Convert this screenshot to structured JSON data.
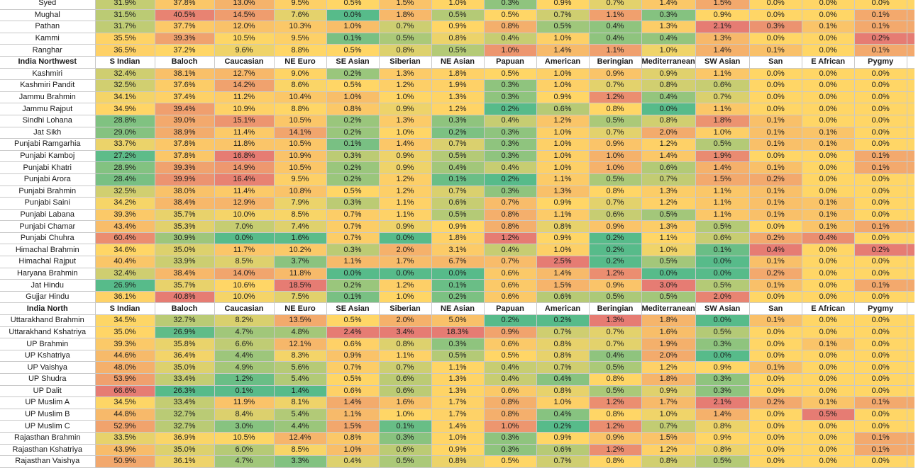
{
  "columns": [
    "S Indian",
    "Baloch",
    "Caucasian",
    "NE Euro",
    "SE Asian",
    "Siberian",
    "NE Asian",
    "Papuan",
    "American",
    "Beringian",
    "Mediterranean",
    "SW Asian",
    "San",
    "E African",
    "Pygmy"
  ],
  "rows": [
    {
      "name": "Syed",
      "v": [
        "31.9%",
        "37.8%",
        "13.0%",
        "9.5%",
        "0.5%",
        "1.5%",
        "1.0%",
        "0.3%",
        "0.9%",
        "0.7%",
        "1.4%",
        "1.5%",
        "0.0%",
        "0.0%",
        "0.0%"
      ]
    },
    {
      "name": "Mughal",
      "v": [
        "31.5%",
        "40.5%",
        "14.5%",
        "7.6%",
        "0.0%",
        "1.8%",
        "0.5%",
        "0.5%",
        "0.7%",
        "1.1%",
        "0.3%",
        "0.9%",
        "0.0%",
        "0.0%",
        "0.1%"
      ]
    },
    {
      "name": "Pathan",
      "v": [
        "31.7%",
        "37.7%",
        "12.0%",
        "10.3%",
        "1.0%",
        "0.7%",
        "0.9%",
        "0.8%",
        "0.5%",
        "0.4%",
        "1.3%",
        "2.1%",
        "0.3%",
        "0.1%",
        "0.1%"
      ]
    },
    {
      "name": "Kammi",
      "v": [
        "35.5%",
        "39.3%",
        "10.5%",
        "9.5%",
        "0.1%",
        "0.5%",
        "0.8%",
        "0.4%",
        "1.0%",
        "0.4%",
        "0.4%",
        "1.3%",
        "0.0%",
        "0.0%",
        "0.2%"
      ]
    },
    {
      "name": "Ranghar",
      "v": [
        "36.5%",
        "37.2%",
        "9.6%",
        "8.8%",
        "0.5%",
        "0.8%",
        "0.5%",
        "1.0%",
        "1.4%",
        "1.1%",
        "1.0%",
        "1.4%",
        "0.1%",
        "0.0%",
        "0.1%"
      ]
    },
    {
      "name": "India Northwest",
      "header": true
    },
    {
      "name": "Kashmiri",
      "v": [
        "32.4%",
        "38.1%",
        "12.7%",
        "9.0%",
        "0.2%",
        "1.3%",
        "1.8%",
        "0.5%",
        "1.0%",
        "0.9%",
        "0.9%",
        "1.1%",
        "0.0%",
        "0.0%",
        "0.0%"
      ]
    },
    {
      "name": "Kashmiri Pandit",
      "v": [
        "32.5%",
        "37.6%",
        "14.2%",
        "8.6%",
        "0.5%",
        "1.2%",
        "1.9%",
        "0.3%",
        "1.0%",
        "0.7%",
        "0.8%",
        "0.6%",
        "0.0%",
        "0.0%",
        "0.0%"
      ]
    },
    {
      "name": "Jammu Brahmin",
      "v": [
        "34.1%",
        "37.4%",
        "11.2%",
        "10.4%",
        "1.0%",
        "1.0%",
        "1.3%",
        "0.3%",
        "0.9%",
        "1.2%",
        "0.4%",
        "0.7%",
        "0.0%",
        "0.0%",
        "0.0%"
      ]
    },
    {
      "name": "Jammu Rajput",
      "v": [
        "34.9%",
        "39.4%",
        "10.9%",
        "8.8%",
        "0.8%",
        "0.9%",
        "1.2%",
        "0.2%",
        "0.6%",
        "0.8%",
        "0.0%",
        "1.1%",
        "0.0%",
        "0.0%",
        "0.0%"
      ]
    },
    {
      "name": "Sindhi Lohana",
      "v": [
        "28.8%",
        "39.0%",
        "15.1%",
        "10.5%",
        "0.2%",
        "1.3%",
        "0.3%",
        "0.4%",
        "1.2%",
        "0.5%",
        "0.8%",
        "1.8%",
        "0.1%",
        "0.0%",
        "0.0%"
      ]
    },
    {
      "name": "Jat Sikh",
      "v": [
        "29.0%",
        "38.9%",
        "11.4%",
        "14.1%",
        "0.2%",
        "1.0%",
        "0.2%",
        "0.3%",
        "1.0%",
        "0.7%",
        "2.0%",
        "1.0%",
        "0.1%",
        "0.1%",
        "0.0%"
      ]
    },
    {
      "name": "Punjabi Ramgarhia",
      "v": [
        "33.7%",
        "37.8%",
        "11.8%",
        "10.5%",
        "0.1%",
        "1.4%",
        "0.7%",
        "0.3%",
        "1.0%",
        "0.9%",
        "1.2%",
        "0.5%",
        "0.1%",
        "0.1%",
        "0.0%"
      ]
    },
    {
      "name": "Punjabi Kamboj",
      "v": [
        "27.2%",
        "37.8%",
        "16.8%",
        "10.9%",
        "0.3%",
        "0.9%",
        "0.5%",
        "0.3%",
        "1.0%",
        "1.0%",
        "1.4%",
        "1.9%",
        "0.0%",
        "0.0%",
        "0.1%"
      ]
    },
    {
      "name": "Punjabi Khatri",
      "v": [
        "28.9%",
        "39.3%",
        "14.9%",
        "10.5%",
        "0.2%",
        "0.9%",
        "0.4%",
        "0.4%",
        "1.0%",
        "1.0%",
        "0.6%",
        "1.4%",
        "0.1%",
        "0.0%",
        "0.1%"
      ]
    },
    {
      "name": "Punjabi Arora",
      "v": [
        "28.4%",
        "39.9%",
        "16.4%",
        "9.5%",
        "0.2%",
        "1.2%",
        "0.1%",
        "0.2%",
        "1.1%",
        "0.5%",
        "0.7%",
        "1.5%",
        "0.2%",
        "0.0%",
        "0.0%"
      ]
    },
    {
      "name": "Punjabi Brahmin",
      "v": [
        "32.5%",
        "38.0%",
        "11.4%",
        "10.8%",
        "0.5%",
        "1.2%",
        "0.7%",
        "0.3%",
        "1.3%",
        "0.8%",
        "1.3%",
        "1.1%",
        "0.1%",
        "0.0%",
        "0.0%"
      ]
    },
    {
      "name": "Punjabi Saini",
      "v": [
        "34.2%",
        "38.4%",
        "12.9%",
        "7.9%",
        "0.3%",
        "1.1%",
        "0.6%",
        "0.7%",
        "0.9%",
        "0.7%",
        "1.2%",
        "1.1%",
        "0.1%",
        "0.1%",
        "0.0%"
      ]
    },
    {
      "name": "Punjabi Labana",
      "v": [
        "39.3%",
        "35.7%",
        "10.0%",
        "8.5%",
        "0.7%",
        "1.1%",
        "0.5%",
        "0.8%",
        "1.1%",
        "0.6%",
        "0.5%",
        "1.1%",
        "0.1%",
        "0.1%",
        "0.0%"
      ]
    },
    {
      "name": "Punjabi Chamar",
      "v": [
        "43.4%",
        "35.3%",
        "7.0%",
        "7.4%",
        "0.7%",
        "0.9%",
        "0.9%",
        "0.8%",
        "0.8%",
        "0.9%",
        "1.3%",
        "0.5%",
        "0.0%",
        "0.1%",
        "0.1%"
      ]
    },
    {
      "name": "Punjabi Chuhra",
      "v": [
        "60.4%",
        "30.9%",
        "0.0%",
        "1.6%",
        "0.7%",
        "0.0%",
        "1.8%",
        "1.2%",
        "0.9%",
        "0.2%",
        "1.1%",
        "0.6%",
        "0.2%",
        "0.4%",
        "0.0%"
      ]
    },
    {
      "name": "Himachal Brahmin",
      "v": [
        "34.6%",
        "35.0%",
        "11.7%",
        "10.2%",
        "0.3%",
        "2.0%",
        "3.1%",
        "0.4%",
        "1.0%",
        "0.2%",
        "1.0%",
        "0.1%",
        "0.4%",
        "0.0%",
        "0.2%"
      ]
    },
    {
      "name": "Himachal Rajput",
      "v": [
        "40.4%",
        "33.9%",
        "8.5%",
        "3.7%",
        "1.1%",
        "1.7%",
        "6.7%",
        "0.7%",
        "2.5%",
        "0.2%",
        "0.5%",
        "0.0%",
        "0.1%",
        "0.0%",
        "0.0%"
      ]
    },
    {
      "name": "Haryana Brahmin",
      "v": [
        "32.4%",
        "38.4%",
        "14.0%",
        "11.8%",
        "0.0%",
        "0.0%",
        "0.0%",
        "0.6%",
        "1.4%",
        "1.2%",
        "0.0%",
        "0.0%",
        "0.2%",
        "0.0%",
        "0.0%"
      ]
    },
    {
      "name": "Jat Hindu",
      "v": [
        "26.9%",
        "35.7%",
        "10.6%",
        "18.5%",
        "0.2%",
        "1.2%",
        "0.1%",
        "0.6%",
        "1.5%",
        "0.9%",
        "3.0%",
        "0.5%",
        "0.1%",
        "0.0%",
        "0.1%"
      ]
    },
    {
      "name": "Gujjar Hindu",
      "v": [
        "36.1%",
        "40.8%",
        "10.0%",
        "7.5%",
        "0.1%",
        "1.0%",
        "0.2%",
        "0.6%",
        "0.6%",
        "0.5%",
        "0.5%",
        "2.0%",
        "0.0%",
        "0.0%",
        "0.0%"
      ]
    },
    {
      "name": "India North",
      "header": true
    },
    {
      "name": "Uttarakhand Brahmin",
      "v": [
        "34.5%",
        "32.7%",
        "8.2%",
        "13.5%",
        "0.5%",
        "2.0%",
        "5.0%",
        "0.2%",
        "0.2%",
        "1.3%",
        "1.8%",
        "0.0%",
        "0.1%",
        "0.0%",
        "0.0%"
      ]
    },
    {
      "name": "Uttarakhand Kshatriya",
      "v": [
        "35.0%",
        "26.9%",
        "4.7%",
        "4.8%",
        "2.4%",
        "3.4%",
        "18.3%",
        "0.9%",
        "0.7%",
        "0.7%",
        "1.6%",
        "0.5%",
        "0.0%",
        "0.0%",
        "0.0%"
      ]
    },
    {
      "name": "UP Brahmin",
      "v": [
        "39.3%",
        "35.8%",
        "6.6%",
        "12.1%",
        "0.6%",
        "0.8%",
        "0.3%",
        "0.6%",
        "0.8%",
        "0.7%",
        "1.9%",
        "0.3%",
        "0.0%",
        "0.1%",
        "0.0%"
      ]
    },
    {
      "name": "UP Kshatriya",
      "v": [
        "44.6%",
        "36.4%",
        "4.4%",
        "8.3%",
        "0.9%",
        "1.1%",
        "0.5%",
        "0.5%",
        "0.8%",
        "0.4%",
        "2.0%",
        "0.0%",
        "0.0%",
        "0.0%",
        "0.0%"
      ]
    },
    {
      "name": "UP Vaishya",
      "v": [
        "48.0%",
        "35.0%",
        "4.9%",
        "5.6%",
        "0.7%",
        "0.7%",
        "1.1%",
        "0.4%",
        "0.7%",
        "0.5%",
        "1.2%",
        "0.9%",
        "0.1%",
        "0.0%",
        "0.0%"
      ]
    },
    {
      "name": "UP Shudra",
      "v": [
        "53.9%",
        "33.4%",
        "1.2%",
        "5.4%",
        "0.5%",
        "0.6%",
        "1.3%",
        "0.4%",
        "0.4%",
        "0.8%",
        "1.8%",
        "0.3%",
        "0.0%",
        "0.0%",
        "0.0%"
      ]
    },
    {
      "name": "UP Dalit",
      "v": [
        "66.6%",
        "26.3%",
        "0.1%",
        "1.4%",
        "0.6%",
        "0.6%",
        "1.3%",
        "0.6%",
        "0.8%",
        "0.5%",
        "0.9%",
        "0.3%",
        "0.0%",
        "0.0%",
        "0.0%"
      ]
    },
    {
      "name": "UP Muslim A",
      "v": [
        "34.5%",
        "33.4%",
        "11.9%",
        "8.1%",
        "1.4%",
        "1.6%",
        "1.7%",
        "0.8%",
        "1.0%",
        "1.2%",
        "1.7%",
        "2.1%",
        "0.2%",
        "0.1%",
        "0.1%"
      ]
    },
    {
      "name": "UP Muslim B",
      "v": [
        "44.8%",
        "32.7%",
        "8.4%",
        "5.4%",
        "1.1%",
        "1.0%",
        "1.7%",
        "0.8%",
        "0.4%",
        "0.8%",
        "1.0%",
        "1.4%",
        "0.0%",
        "0.5%",
        "0.0%"
      ]
    },
    {
      "name": "UP Muslim C",
      "v": [
        "52.9%",
        "32.7%",
        "3.0%",
        "4.4%",
        "1.5%",
        "0.1%",
        "1.4%",
        "1.0%",
        "0.2%",
        "1.2%",
        "0.7%",
        "0.8%",
        "0.0%",
        "0.0%",
        "0.0%"
      ]
    },
    {
      "name": "Rajasthan Brahmin",
      "v": [
        "33.5%",
        "36.9%",
        "10.5%",
        "12.4%",
        "0.8%",
        "0.3%",
        "1.0%",
        "0.3%",
        "0.9%",
        "0.9%",
        "1.5%",
        "0.9%",
        "0.0%",
        "0.0%",
        "0.1%"
      ]
    },
    {
      "name": "Rajasthan Kshatriya",
      "v": [
        "43.9%",
        "35.0%",
        "6.0%",
        "8.5%",
        "1.0%",
        "0.6%",
        "0.9%",
        "0.3%",
        "0.6%",
        "1.2%",
        "1.2%",
        "0.8%",
        "0.0%",
        "0.0%",
        "0.1%"
      ]
    },
    {
      "name": "Rajasthan Vaishya",
      "v": [
        "50.9%",
        "36.1%",
        "4.7%",
        "3.3%",
        "0.4%",
        "0.5%",
        "0.8%",
        "0.5%",
        "0.7%",
        "0.8%",
        "0.8%",
        "0.5%",
        "0.0%",
        "0.0%",
        "0.0%"
      ]
    }
  ]
}
